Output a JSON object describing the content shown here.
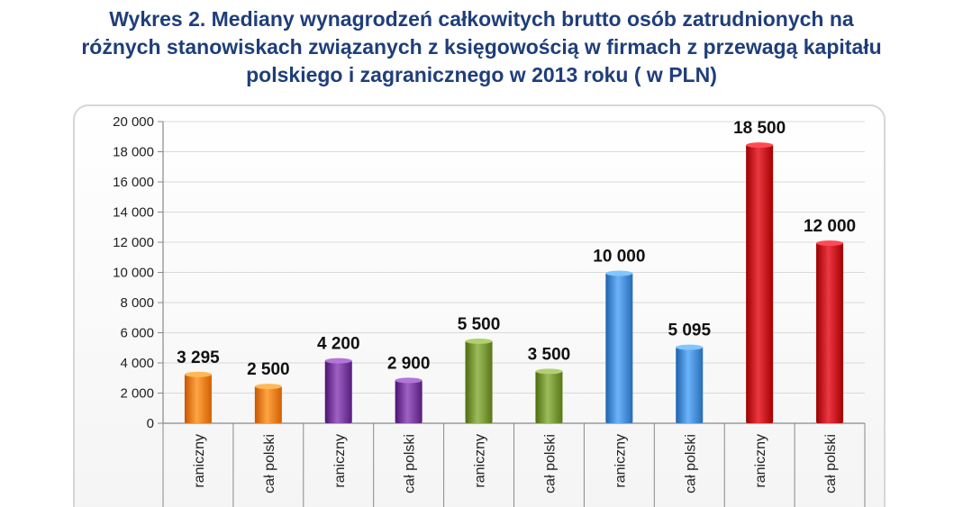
{
  "title_lines": [
    "Wykres 2. Mediany wynagrodzeń całkowitych brutto osób zatrudnionych na",
    "różnych stanowiskach związanych z księgowością w firmach z przewagą kapitału",
    "polskiego i zagranicznego w 2013 roku ( w PLN)"
  ],
  "chart_data": {
    "type": "bar",
    "title": "Wykres 2. Mediany wynagrodzeń całkowitych brutto osób zatrudnionych na różnych stanowiskach związanych z księgowością w firmach z przewagą kapitału polskiego i zagranicznego w 2013 roku ( w PLN)",
    "categories": [
      "raniczny",
      "cał polski",
      "raniczny",
      "cał polski",
      "raniczny",
      "cał polski",
      "raniczny",
      "cał polski",
      "raniczny",
      "cał polski"
    ],
    "values": [
      3295,
      2500,
      4200,
      2900,
      5500,
      3500,
      10000,
      5095,
      18500,
      12000
    ],
    "value_labels": [
      "3 295",
      "2 500",
      "4 200",
      "2 900",
      "5 500",
      "3 500",
      "10 000",
      "5 095",
      "18 500",
      "12 000"
    ],
    "bar_colors": [
      "#f58220",
      "#f58220",
      "#7b3fa0",
      "#7b3fa0",
      "#7a9a3a",
      "#7a9a3a",
      "#4a90d9",
      "#4a90d9",
      "#c8141e",
      "#c8141e"
    ],
    "ylim": [
      0,
      20000
    ],
    "yticks": [
      0,
      2000,
      4000,
      6000,
      8000,
      10000,
      12000,
      14000,
      16000,
      18000,
      20000
    ],
    "ytick_labels": [
      "0",
      "2 000",
      "4 000",
      "6 000",
      "8 000",
      "10 000",
      "12 000",
      "14 000",
      "16 000",
      "18 000",
      "20 000"
    ],
    "xlabel": "",
    "ylabel": "",
    "grid": true,
    "legend": "none"
  }
}
